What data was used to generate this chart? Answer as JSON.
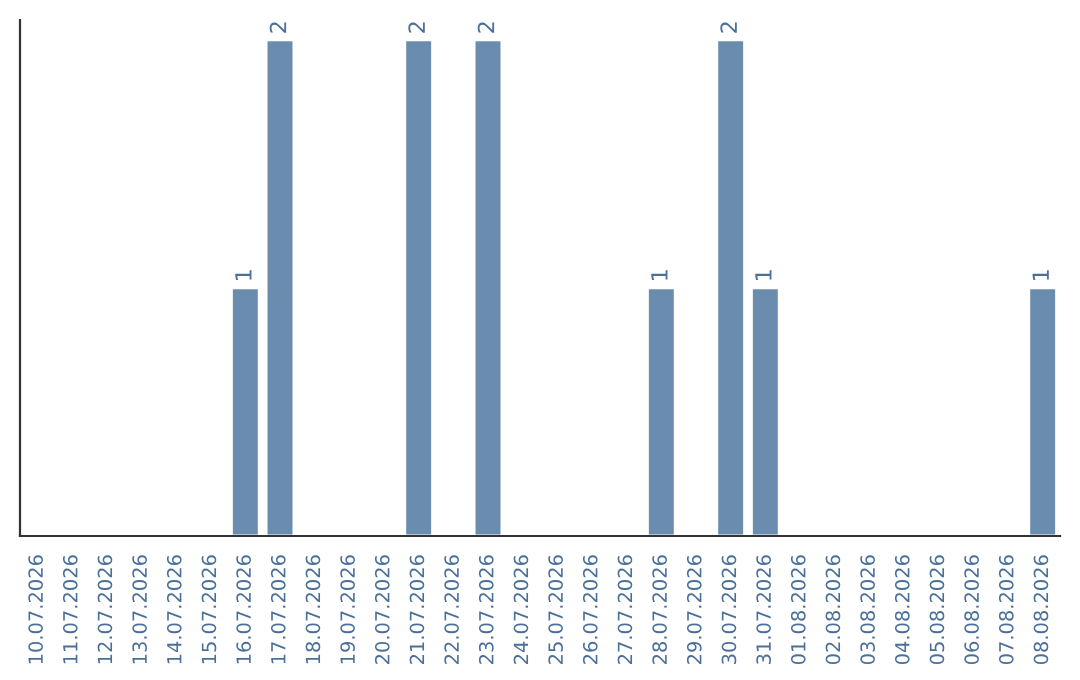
{
  "chart_data": {
    "type": "bar",
    "categories": [
      "10.07.2026",
      "11.07.2026",
      "12.07.2026",
      "13.07.2026",
      "14.07.2026",
      "15.07.2026",
      "16.07.2026",
      "17.07.2026",
      "18.07.2026",
      "19.07.2026",
      "20.07.2026",
      "21.07.2026",
      "22.07.2026",
      "23.07.2026",
      "24.07.2026",
      "25.07.2026",
      "26.07.2026",
      "27.07.2026",
      "28.07.2026",
      "29.07.2026",
      "30.07.2026",
      "31.07.2026",
      "01.08.2026",
      "02.08.2026",
      "03.08.2026",
      "04.08.2026",
      "05.08.2026",
      "06.08.2026",
      "07.08.2026",
      "08.08.2026"
    ],
    "values": [
      null,
      null,
      null,
      null,
      null,
      null,
      1,
      2,
      null,
      null,
      null,
      2,
      null,
      2,
      null,
      null,
      null,
      null,
      1,
      null,
      2,
      1,
      null,
      null,
      null,
      null,
      null,
      null,
      null,
      1
    ],
    "value_labels": [
      null,
      null,
      null,
      null,
      null,
      null,
      "1",
      "2",
      null,
      null,
      null,
      "2",
      null,
      "2",
      null,
      null,
      null,
      null,
      "1",
      null,
      "2",
      "1",
      null,
      null,
      null,
      null,
      null,
      null,
      null,
      "1"
    ],
    "color": "#6a8caf",
    "ylim": [
      0,
      2.08
    ],
    "tick_labels": "x",
    "grid": false,
    "legend": false
  }
}
